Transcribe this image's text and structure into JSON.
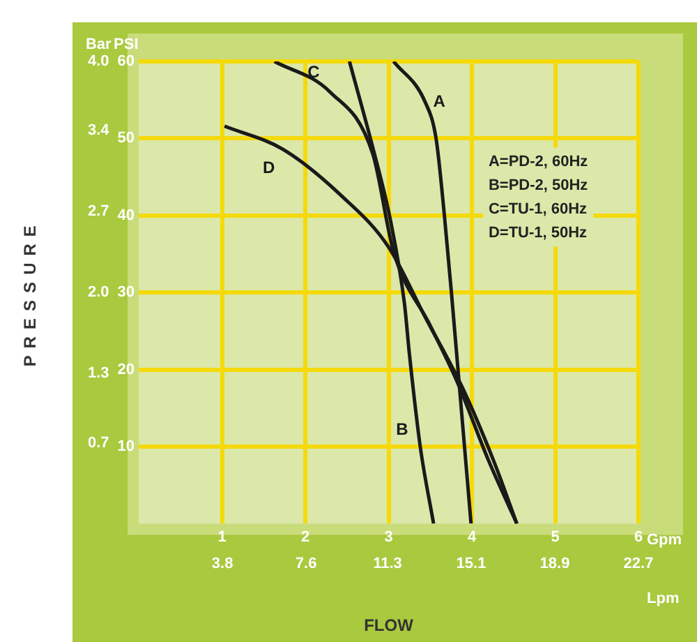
{
  "chart_data": {
    "type": "line",
    "xlabel": "FLOW",
    "ylabel": "PRESSURE",
    "x2label": "Lpm",
    "y2label": "PSI",
    "xlim": [
      0,
      6
    ],
    "xticks": [
      1,
      2,
      3,
      4,
      5,
      6
    ],
    "ylim": [
      0,
      4.0
    ],
    "yticks": [
      0.7,
      1.3,
      {
        "value": 2.0,
        "label": "2.0"
      },
      2.7,
      3.4,
      {
        "value": 4.0,
        "label": "4.0"
      }
    ],
    "x2lim": [
      0,
      22.7
    ],
    "x2ticks": [
      3.8,
      7.6,
      11.3,
      15.1,
      18.9,
      22.7
    ],
    "y2lim": [
      0,
      60
    ],
    "y2ticks": [
      10,
      20,
      30,
      40,
      50,
      60
    ],
    "grid": true,
    "marker": "none",
    "line_style": "solid",
    "annotations": [
      "Bar",
      "Gpm",
      "A=PD-2, 60Hz",
      "B=PD-2, 50Hz",
      "C=TU-1, 60Hz",
      "D=TU-1, 50Hz"
    ],
    "series": [
      {
        "name": "A",
        "color": "#1a1a1a",
        "axis": "y2",
        "x": [
          3.06,
          3.44,
          3.57,
          3.67,
          3.76,
          3.88,
          3.99
        ],
        "values": [
          60,
          54.7,
          50,
          40,
          29.3,
          14,
          0
        ]
      },
      {
        "name": "B",
        "color": "#1a1a1a",
        "axis": "y2",
        "x": [
          2.53,
          2.83,
          3.02,
          3.19,
          3.25,
          3.38,
          3.54
        ],
        "values": [
          60,
          48,
          39.5,
          28.6,
          22,
          10,
          0
        ]
      },
      {
        "name": "C",
        "color": "#1a1a1a",
        "axis": "y2",
        "x": [
          1.63,
          2.3,
          2.81,
          3.06,
          3.5,
          3.82,
          4.2,
          4.54
        ],
        "values": [
          60,
          56,
          48,
          35.3,
          25.7,
          18.5,
          8.2,
          0
        ]
      },
      {
        "name": "D",
        "color": "#1a1a1a",
        "axis": "y2",
        "x": [
          1.03,
          1.73,
          2.43,
          3.0,
          3.44,
          3.88,
          4.26,
          4.54
        ],
        "values": [
          51.6,
          48.6,
          42.6,
          35.9,
          26.8,
          17.8,
          8.2,
          0
        ]
      }
    ]
  }
}
